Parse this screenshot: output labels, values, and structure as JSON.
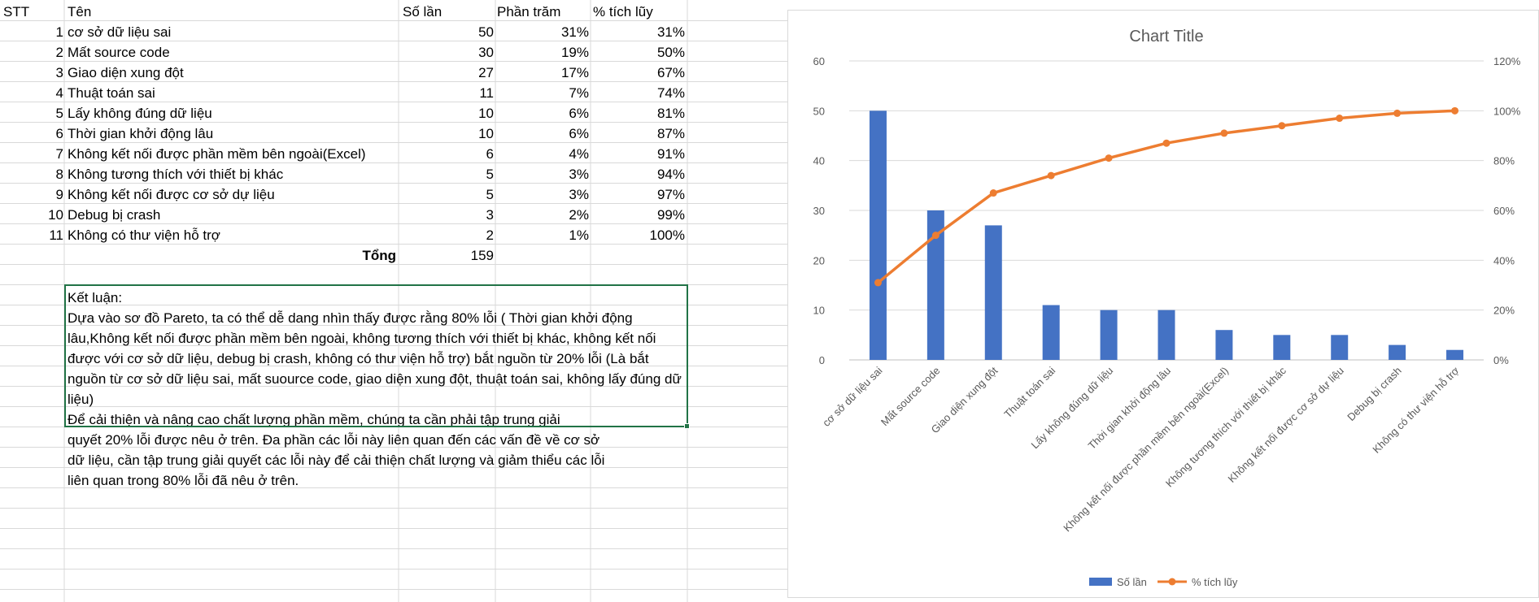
{
  "spreadsheet": {
    "headers": [
      "STT",
      "Tên",
      "Số lần",
      "Phần trăm",
      "% tích lũy"
    ],
    "rows": [
      {
        "stt": "1",
        "name": "cơ sở dữ liệu sai",
        "count": "50",
        "percent": "31%",
        "cumulative": "31%"
      },
      {
        "stt": "2",
        "name": "Mất source code",
        "count": "30",
        "percent": "19%",
        "cumulative": "50%"
      },
      {
        "stt": "3",
        "name": "Giao diện xung đột",
        "count": "27",
        "percent": "17%",
        "cumulative": "67%"
      },
      {
        "stt": "4",
        "name": "Thuật toán sai",
        "count": "11",
        "percent": "7%",
        "cumulative": "74%"
      },
      {
        "stt": "5",
        "name": "Lấy không đúng dữ liệu",
        "count": "10",
        "percent": "6%",
        "cumulative": "81%"
      },
      {
        "stt": "6",
        "name": "Thời gian khởi động lâu",
        "count": "10",
        "percent": "6%",
        "cumulative": "87%"
      },
      {
        "stt": "7",
        "name": "Không kết nối được phần mềm bên ngoài(Excel)",
        "count": "6",
        "percent": "4%",
        "cumulative": "91%"
      },
      {
        "stt": "8",
        "name": "Không tương thích với thiết bị khác",
        "count": "5",
        "percent": "3%",
        "cumulative": "94%"
      },
      {
        "stt": "9",
        "name": "Không kết nối được cơ sở dự liệu",
        "count": "5",
        "percent": "3%",
        "cumulative": "97%"
      },
      {
        "stt": "10",
        "name": "Debug bị crash",
        "count": "3",
        "percent": "2%",
        "cumulative": "99%"
      },
      {
        "stt": "11",
        "name": "Không có thư viện hỗ trợ",
        "count": "2",
        "percent": "1%",
        "cumulative": "100%"
      }
    ],
    "total_label": "Tổng",
    "total_value": "159",
    "conclusion_lines": [
      "Kết luận:",
      "Dựa vào sơ đồ Pareto, ta có thể dễ dang nhìn thấy được rằng 80% lỗi ( Thời gian khởi động",
      "lâu,Không kết nối được phần mềm bên ngoài, không tương thích với thiết bị khác, không kết nối",
      "được với cơ sở dữ liệu, debug bị crash, không có thư viện hỗ trợ) bắt nguồn từ 20% lỗi (Là bắt",
      "nguồn từ cơ sở dữ liệu sai, mất suource code, giao diện xung đột, thuật toán sai, không lấy đúng dữ",
      "liệu)",
      "Để cải thiện và nâng cao chất lượng phần mềm, chúng ta cần phải tập trung giải",
      "quyết 20% lỗi được nêu ở trên. Đa phần các lỗi này liên quan đến các vấn đề về cơ sở",
      "dữ liệu, cần tập trung giải quyết các lỗi này để cải thiện chất lượng và giảm thiểu các lỗi",
      "liên quan trong 80% lỗi đã nêu ở trên."
    ]
  },
  "colors": {
    "bar": "#4472C4",
    "line": "#ED7D31",
    "selection": "#217346",
    "gridline": "#d9d9d9",
    "axis_text": "#595959"
  },
  "chart_data": {
    "type": "bar",
    "title": "Chart Title",
    "categories": [
      "cơ sở dữ liệu sai",
      "Mất source code",
      "Giao diện xung đột",
      "Thuật toán sai",
      "Lấy không đúng dữ liệu",
      "Thời gian khởi động lâu",
      "Không kết nối được phần mềm bên ngoài(Excel)",
      "Không tương thích với thiết bị khác",
      "Không kết nối được cơ sở dự liệu",
      "Debug bị crash",
      "Không có thư viện hỗ trợ"
    ],
    "series": [
      {
        "name": "Số lần",
        "type": "bar",
        "axis": "left",
        "values": [
          50,
          30,
          27,
          11,
          10,
          10,
          6,
          5,
          5,
          3,
          2
        ]
      },
      {
        "name": "% tích lũy",
        "type": "line",
        "axis": "right",
        "values": [
          31,
          50,
          67,
          74,
          81,
          87,
          91,
          94,
          97,
          99,
          100
        ]
      }
    ],
    "y_left": {
      "min": 0,
      "max": 60,
      "ticks": [
        "0",
        "10",
        "20",
        "30",
        "40",
        "50",
        "60"
      ]
    },
    "y_right": {
      "min": 0,
      "max": 120,
      "ticks": [
        "0%",
        "20%",
        "40%",
        "60%",
        "80%",
        "100%",
        "120%"
      ]
    },
    "grid": true,
    "legend": "bottom"
  }
}
